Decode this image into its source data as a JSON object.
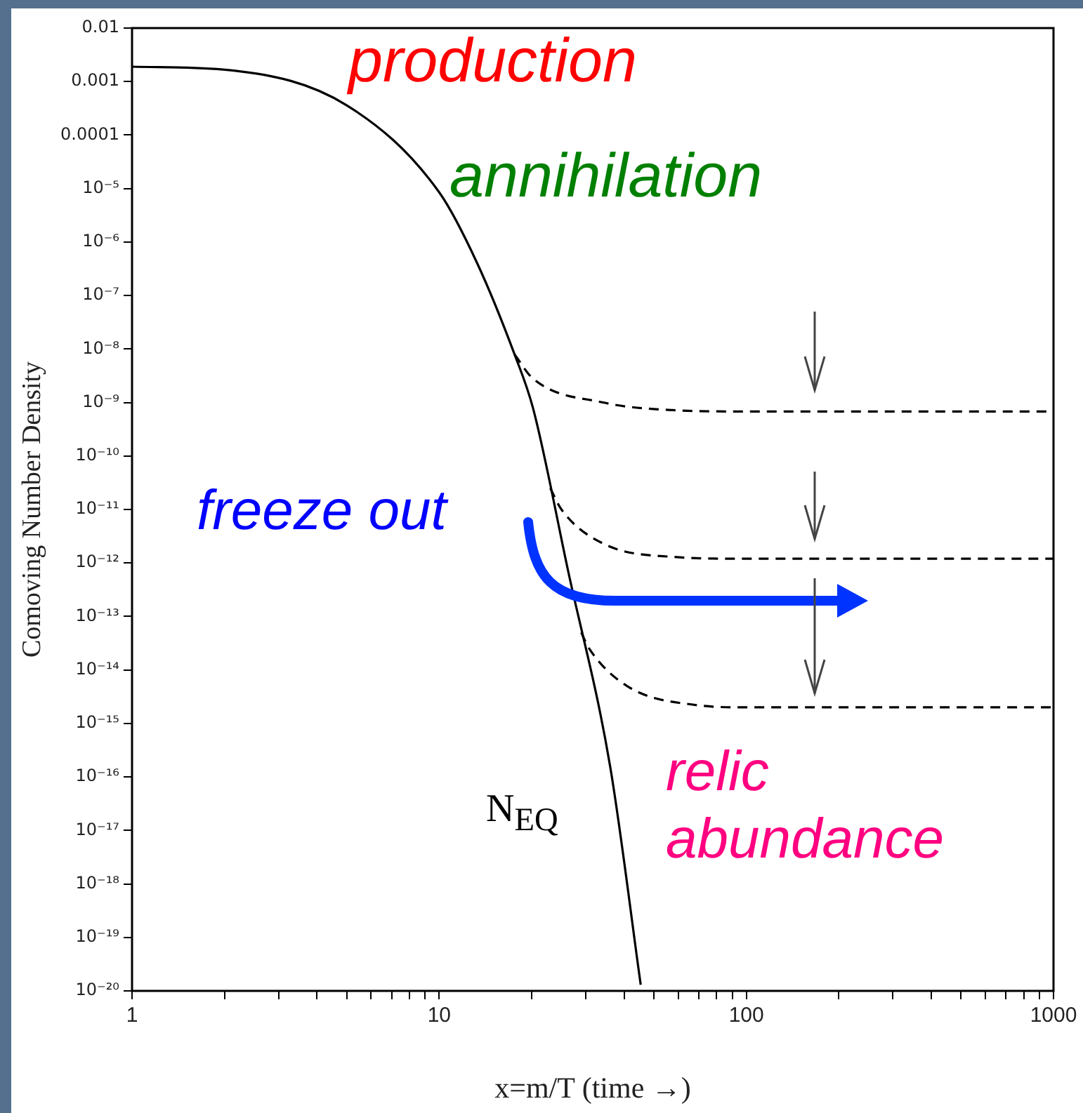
{
  "chart_data": {
    "type": "line",
    "xlabel": "x=m/T (time →)",
    "ylabel": "Comoving Number Density",
    "log": "xy",
    "xlim": [
      1,
      1000
    ],
    "ylim": [
      1e-20,
      0.01
    ],
    "xticks": [
      1,
      {
        "value": 2,
        "label": null
      },
      {
        "value": 3,
        "label": null
      },
      {
        "value": 4,
        "label": null
      },
      {
        "value": 5,
        "label": null
      },
      {
        "value": 6,
        "label": null
      },
      {
        "value": 7,
        "label": null
      },
      {
        "value": 8,
        "label": null
      },
      {
        "value": 9,
        "label": null
      },
      10,
      {
        "value": 20,
        "label": null
      },
      {
        "value": 30,
        "label": null
      },
      {
        "value": 40,
        "label": null
      },
      {
        "value": 50,
        "label": null
      },
      {
        "value": 60,
        "label": null
      },
      {
        "value": 70,
        "label": null
      },
      {
        "value": 80,
        "label": null
      },
      {
        "value": 90,
        "label": null
      },
      100,
      {
        "value": 200,
        "label": null
      },
      {
        "value": 300,
        "label": null
      },
      {
        "value": 400,
        "label": null
      },
      {
        "value": 500,
        "label": null
      },
      {
        "value": 600,
        "label": null
      },
      {
        "value": 700,
        "label": null
      },
      {
        "value": 800,
        "label": null
      },
      {
        "value": 900,
        "label": null
      },
      1000
    ],
    "yticks": [
      0.01,
      0.001,
      0.0001,
      {
        "value": 1e-05,
        "label": "10⁻⁵"
      },
      {
        "value": 1e-06,
        "label": "10⁻⁶"
      },
      {
        "value": 1e-07,
        "label": "10⁻⁷"
      },
      {
        "value": 1e-08,
        "label": "10⁻⁸"
      },
      {
        "value": 1e-09,
        "label": "10⁻⁹"
      },
      {
        "value": 1e-10,
        "label": "10⁻¹⁰"
      },
      {
        "value": 1e-11,
        "label": "10⁻¹¹"
      },
      {
        "value": 1e-12,
        "label": "10⁻¹²"
      },
      {
        "value": 1e-13,
        "label": "10⁻¹³"
      },
      {
        "value": 1e-14,
        "label": "10⁻¹⁴"
      },
      {
        "value": 1e-15,
        "label": "10⁻¹⁵"
      },
      {
        "value": 1e-16,
        "label": "10⁻¹⁶"
      },
      {
        "value": 1e-17,
        "label": "10⁻¹⁷"
      },
      {
        "value": 1e-18,
        "label": "10⁻¹⁸"
      },
      {
        "value": 1e-19,
        "label": "10⁻¹⁹"
      },
      {
        "value": 1e-20,
        "label": "10⁻²⁰"
      }
    ],
    "series": [
      {
        "color": "#000000",
        "line_style": "solid",
        "x": [
          1,
          2.15,
          5,
          10,
          13.3,
          17.6,
          20.2,
          26.3,
          36,
          45.3
        ],
        "values": [
          0.0019,
          0.0016,
          0.00036,
          8.5e-06,
          4e-07,
          7.9e-09,
          7.9e-10,
          7e-13,
          1.6e-16,
          1.3e-20
        ]
      },
      {
        "color": "#000000",
        "line_style": "dashed",
        "x": [
          17.6,
          20.2,
          34.2,
          57.6,
          100,
          1000
        ],
        "values": [
          7.9e-09,
          2.8e-09,
          1e-09,
          7.2e-10,
          6.8e-10,
          6.8e-10
        ]
      },
      {
        "color": "#000000",
        "line_style": "dashed",
        "x": [
          23,
          25,
          34.2,
          57.6,
          100,
          1000
        ],
        "values": [
          2.5e-11,
          1e-11,
          2.3e-12,
          1.3e-12,
          1.2e-12,
          1.2e-12
        ]
      },
      {
        "color": "#000000",
        "line_style": "dashed",
        "x": [
          29,
          30.8,
          40.9,
          69,
          100,
          1000
        ],
        "values": [
          5e-14,
          2.5e-14,
          5e-15,
          2.2e-15,
          2e-15,
          2e-15
        ]
      }
    ],
    "annotations": [
      "production",
      "annihilation",
      "freeze out",
      "relic abundance",
      "N$_{EQ}$"
    ]
  }
}
